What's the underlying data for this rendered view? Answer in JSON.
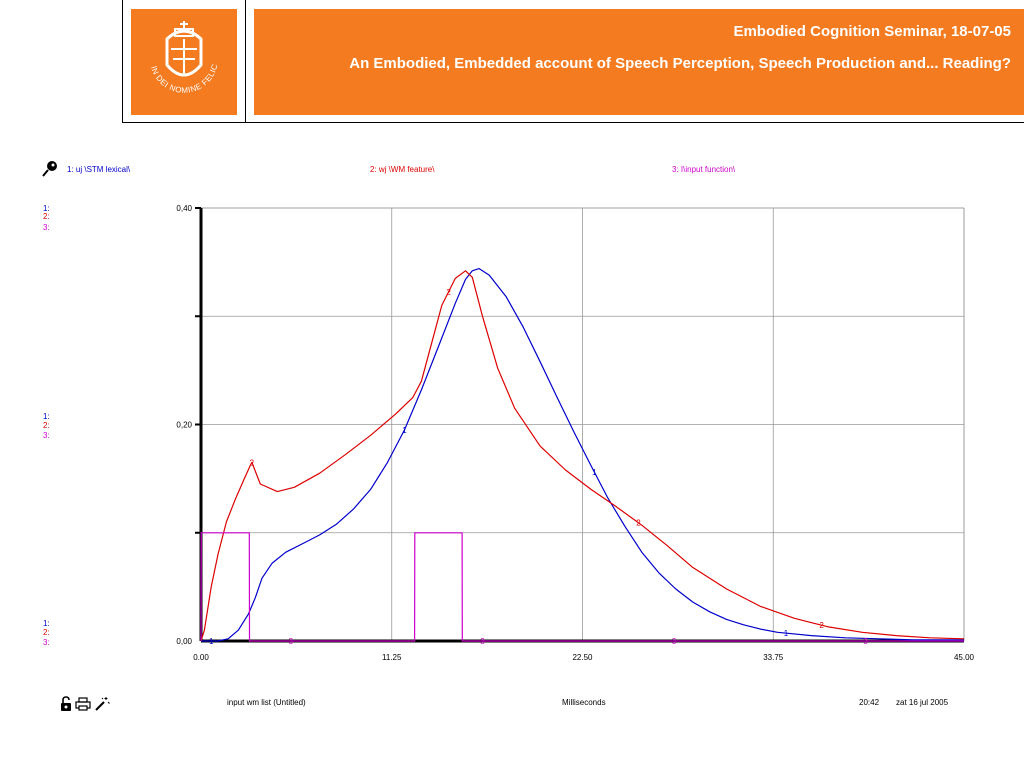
{
  "header": {
    "title": "Embodied Cognition Seminar, 18-07-05",
    "subtitle": "An Embodied, Embedded account of Speech Perception, Speech Production and... Reading?",
    "logo_text": "IN DEI NOMINE FELICITER",
    "accent_color": "#f47b20"
  },
  "legend": {
    "icon": "pushpin-icon",
    "items": [
      {
        "label": "1: uj \\STM lexical\\",
        "color": "#0000cc"
      },
      {
        "label": "2: wj \\WM feature\\",
        "color": "#dd0000"
      },
      {
        "label": "3: I\\input function\\",
        "color": "#cc00cc"
      }
    ]
  },
  "scale_keys": [
    "1:",
    "2:",
    "3:"
  ],
  "footer": {
    "left_label": "input wm list (Untitled)",
    "center_label": "Milliseconds",
    "time": "20:42",
    "date": "zat 16 jul 2005",
    "icons": [
      "padlock-icon",
      "printer-icon",
      "magic-wand-icon"
    ]
  },
  "chart_data": {
    "type": "line",
    "xlabel": "Milliseconds",
    "xlim": [
      0,
      45
    ],
    "ylim": [
      0,
      0.4
    ],
    "x_ticks": [
      "0.00",
      "11.25",
      "22.50",
      "33.75",
      "45.00"
    ],
    "y_ticks": [
      "0,00",
      "0,20",
      "0,40"
    ],
    "grid": true,
    "series": [
      {
        "name": "1: uj \\STM lexical\\",
        "color": "#0000cc",
        "marker": "1",
        "marker_x": [
          0.6,
          12.0,
          23.2,
          34.5
        ],
        "x": [
          0,
          1.0,
          1.6,
          2.2,
          2.8,
          3.2,
          3.6,
          4.2,
          5.0,
          6.0,
          7.0,
          8.0,
          9.0,
          10.0,
          11.0,
          12.0,
          13.0,
          14.0,
          15.0,
          15.6,
          16.0,
          16.4,
          17.0,
          18.0,
          19.0,
          20.0,
          21.0,
          22.0,
          23.0,
          24.0,
          25.0,
          26.0,
          27.0,
          28.0,
          29.0,
          30.0,
          31.0,
          32.0,
          33.0,
          34.0,
          36.0,
          38.0,
          40.0,
          42.0,
          45.0
        ],
        "y": [
          0,
          0.0,
          0.002,
          0.01,
          0.025,
          0.04,
          0.058,
          0.072,
          0.082,
          0.09,
          0.098,
          0.108,
          0.122,
          0.14,
          0.165,
          0.195,
          0.232,
          0.272,
          0.312,
          0.334,
          0.342,
          0.344,
          0.338,
          0.318,
          0.29,
          0.258,
          0.225,
          0.193,
          0.162,
          0.132,
          0.106,
          0.082,
          0.063,
          0.048,
          0.036,
          0.027,
          0.02,
          0.015,
          0.011,
          0.008,
          0.005,
          0.003,
          0.002,
          0.001,
          0.001
        ]
      },
      {
        "name": "2: wj \\WM feature\\",
        "color": "#dd0000",
        "marker": "2",
        "marker_x": [
          3.0,
          14.6,
          25.8,
          36.6
        ],
        "x": [
          0,
          0.2,
          0.6,
          1.0,
          1.5,
          2.0,
          2.5,
          2.9,
          3.0,
          3.5,
          4.5,
          5.5,
          7.0,
          8.5,
          10.0,
          11.5,
          12.5,
          13.0,
          13.6,
          14.2,
          15.0,
          15.6,
          16.0,
          16.6,
          17.5,
          18.5,
          20.0,
          21.5,
          23.0,
          24.5,
          26.0,
          27.5,
          29.0,
          31.0,
          33.0,
          35.0,
          37.0,
          39.0,
          41.0,
          43.0,
          45.0
        ],
        "y": [
          0,
          0.01,
          0.05,
          0.08,
          0.11,
          0.13,
          0.148,
          0.162,
          0.165,
          0.145,
          0.138,
          0.142,
          0.155,
          0.172,
          0.19,
          0.21,
          0.225,
          0.24,
          0.275,
          0.31,
          0.335,
          0.342,
          0.336,
          0.3,
          0.252,
          0.215,
          0.18,
          0.158,
          0.14,
          0.124,
          0.107,
          0.088,
          0.068,
          0.048,
          0.032,
          0.021,
          0.013,
          0.008,
          0.005,
          0.003,
          0.002
        ]
      },
      {
        "name": "3: I\\input function\\",
        "color": "#cc00cc",
        "marker": "3",
        "marker_x": [
          5.3,
          16.6,
          27.9,
          39.2
        ],
        "x": [
          0,
          0.01,
          2.85,
          2.86,
          12.6,
          12.61,
          15.4,
          15.41,
          45.0
        ],
        "y": [
          0,
          0.1,
          0.1,
          0,
          0,
          0.1,
          0.1,
          0,
          0
        ]
      }
    ]
  }
}
